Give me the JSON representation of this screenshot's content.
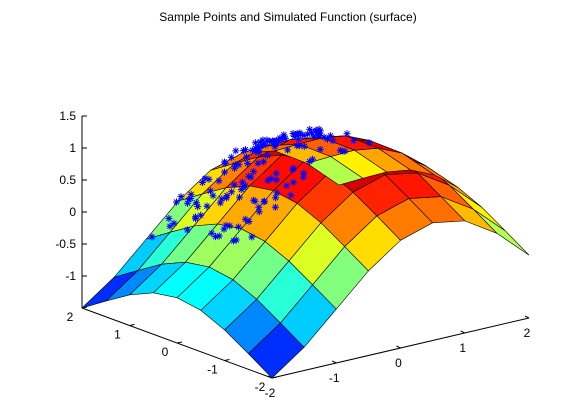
{
  "chart_data": {
    "type": "surface",
    "title": "Sample Points and Simulated Function (surface)",
    "xlabel": "",
    "ylabel": "",
    "zlabel": "",
    "xlim": [
      -2,
      2
    ],
    "ylim": [
      -2,
      2
    ],
    "zlim": [
      -1.5,
      1.5
    ],
    "x_ticks": [
      "-2",
      "-1",
      "0",
      "1",
      "2"
    ],
    "y_ticks": [
      "-2",
      "-1",
      "0",
      "1",
      "2"
    ],
    "z_ticks": [
      "-1",
      "-0.5",
      "0",
      "0.5",
      "1",
      "1.5"
    ],
    "surface": {
      "x": [
        -2,
        -1.5,
        -1,
        -0.5,
        0,
        0.5,
        1,
        1.5,
        2
      ],
      "y": [
        -2,
        -1.5,
        -1,
        -0.5,
        0,
        0.5,
        1,
        1.5,
        2
      ],
      "z_formula": "sin(x + 1) + 0.5*cos(y) - 0.45",
      "colormap": "jet"
    },
    "sample_points": {
      "marker": "*",
      "color": "#0000ff",
      "count": 150,
      "region": "near the upper surface, concentrated toward positive x"
    },
    "grid": false,
    "legend": "none"
  }
}
